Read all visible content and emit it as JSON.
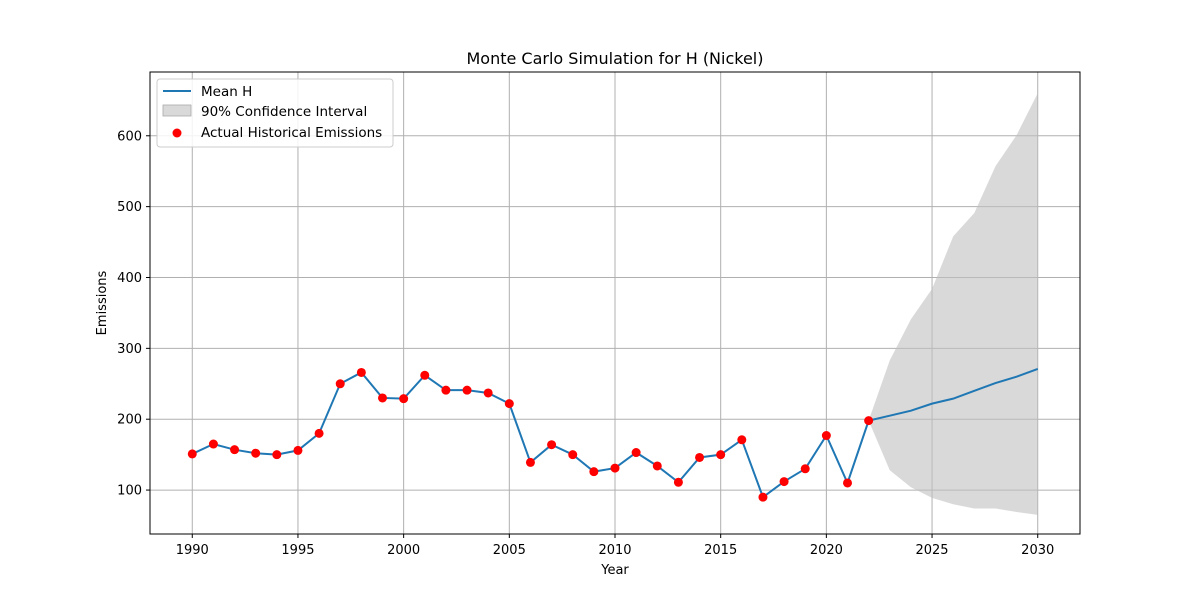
{
  "chart_data": {
    "type": "line",
    "title": "Monte Carlo Simulation for H (Nickel)",
    "xlabel": "Year",
    "ylabel": "Emissions",
    "xlim": [
      1988,
      2032
    ],
    "ylim": [
      38,
      690
    ],
    "xticks": [
      1990,
      1995,
      2000,
      2005,
      2010,
      2015,
      2020,
      2025,
      2030
    ],
    "yticks": [
      100,
      200,
      300,
      400,
      500,
      600
    ],
    "grid": true,
    "legend_position": "top-left",
    "colors": {
      "mean_line": "#1f77b4",
      "confidence_fill": "#bfbfbf",
      "historical_points": "#ff0000",
      "grid": "#b0b0b0"
    },
    "series": [
      {
        "name": "Mean H",
        "kind": "line",
        "x": [
          1990,
          1991,
          1992,
          1993,
          1994,
          1995,
          1996,
          1997,
          1998,
          1999,
          2000,
          2001,
          2002,
          2003,
          2004,
          2005,
          2006,
          2007,
          2008,
          2009,
          2010,
          2011,
          2012,
          2013,
          2014,
          2015,
          2016,
          2017,
          2018,
          2019,
          2020,
          2021,
          2022,
          2023,
          2024,
          2025,
          2026,
          2027,
          2028,
          2029,
          2030
        ],
        "y": [
          151,
          165,
          157,
          152,
          150,
          156,
          180,
          250,
          266,
          230,
          229,
          262,
          241,
          241,
          237,
          222,
          139,
          164,
          150,
          126,
          131,
          153,
          134,
          111,
          146,
          150,
          171,
          90,
          112,
          130,
          177,
          110,
          198,
          205,
          212,
          222,
          229,
          240,
          251,
          260,
          271
        ]
      },
      {
        "name": "90% Confidence Interval",
        "kind": "band",
        "x": [
          2022,
          2023,
          2024,
          2025,
          2026,
          2027,
          2028,
          2029,
          2030
        ],
        "lower": [
          198,
          128,
          104,
          89,
          80,
          74,
          74,
          69,
          65
        ],
        "upper": [
          198,
          283,
          341,
          384,
          458,
          491,
          557,
          601,
          660
        ]
      },
      {
        "name": "Actual Historical Emissions",
        "kind": "scatter",
        "x": [
          1990,
          1991,
          1992,
          1993,
          1994,
          1995,
          1996,
          1997,
          1998,
          1999,
          2000,
          2001,
          2002,
          2003,
          2004,
          2005,
          2006,
          2007,
          2008,
          2009,
          2010,
          2011,
          2012,
          2013,
          2014,
          2015,
          2016,
          2017,
          2018,
          2019,
          2020,
          2021,
          2022
        ],
        "y": [
          151,
          165,
          157,
          152,
          150,
          156,
          180,
          250,
          266,
          230,
          229,
          262,
          241,
          241,
          237,
          222,
          139,
          164,
          150,
          126,
          131,
          153,
          134,
          111,
          146,
          150,
          171,
          90,
          112,
          130,
          177,
          110,
          198
        ]
      }
    ]
  }
}
